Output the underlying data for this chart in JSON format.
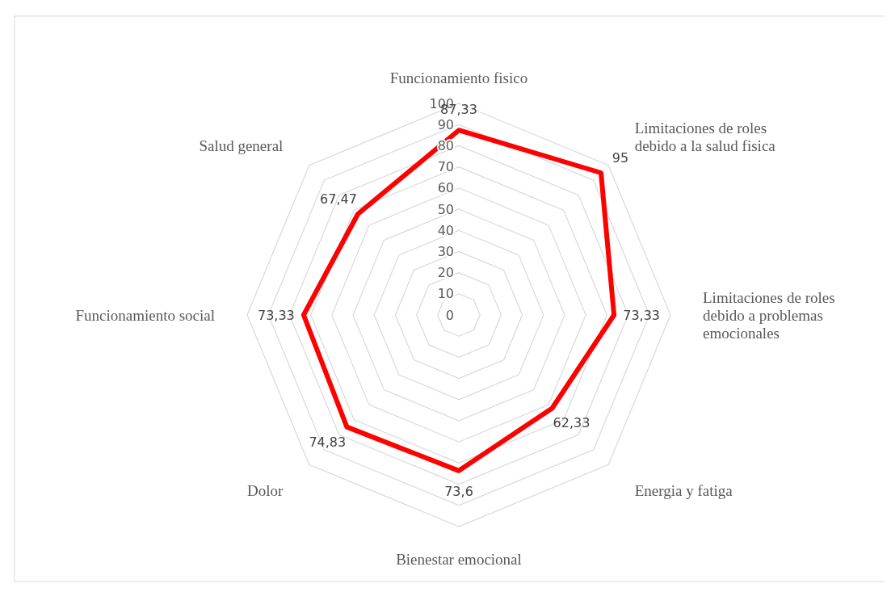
{
  "chart_data": {
    "type": "radar",
    "categories": [
      "Funcionamiento fisico",
      "Limitaciones de roles debido a la salud fisica",
      "Limitaciones de roles debido a problemas emocionales",
      "Energia y fatiga",
      "Bienestar emocional",
      "Dolor",
      "Funcionamiento social",
      "Salud general"
    ],
    "series": [
      {
        "color": "#ff0000",
        "values": [
          87.33,
          95,
          73.33,
          62.33,
          73.6,
          74.83,
          73.33,
          67.47
        ],
        "value_labels": [
          "87,33",
          "95",
          "73,33",
          "62,33",
          "73,6",
          "74,83",
          "73,33",
          "67,47"
        ]
      }
    ],
    "ylim": [
      0,
      100
    ],
    "yticks": [
      0,
      10,
      20,
      30,
      40,
      50,
      60,
      70,
      80,
      90,
      100
    ],
    "grid": true
  }
}
